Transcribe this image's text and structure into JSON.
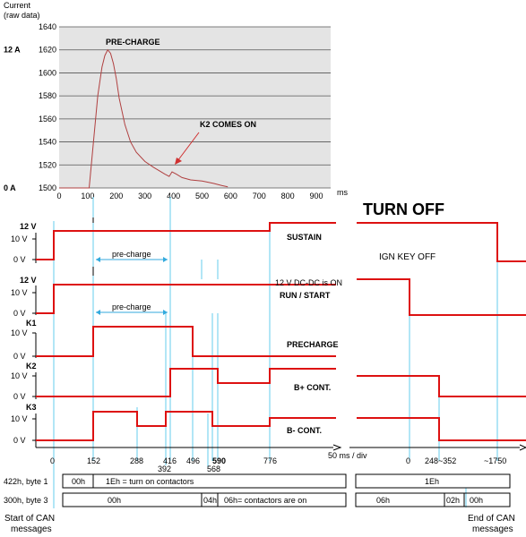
{
  "chart_data": {
    "type": "line",
    "ylabel": "Current (raw data)",
    "xlabel": "ms",
    "xlim": [
      0,
      950
    ],
    "ylim": [
      1500,
      1640
    ],
    "x_ticks": [
      "0",
      "100",
      "200",
      "300",
      "400",
      "500",
      "600",
      "700",
      "800",
      "900"
    ],
    "y_ticks": [
      "1500",
      "1520",
      "1540",
      "1560",
      "1580",
      "1600",
      "1620",
      "1640"
    ],
    "amp_labels": [
      {
        "label": "12 A",
        "at": 1620
      },
      {
        "label": "0 A",
        "at": 1500
      }
    ],
    "grid": true,
    "annotations": [
      {
        "text": "PRE-CHARGE",
        "x": 180,
        "y": 1622
      },
      {
        "text": "K2 COMES ON",
        "x": 390,
        "y": 1506
      }
    ],
    "series": [
      {
        "x": [
          0,
          105,
          120,
          135,
          150,
          160,
          170,
          180,
          190,
          200,
          210,
          230,
          250,
          270,
          300,
          330,
          350,
          370,
          385,
          395,
          410,
          430,
          460,
          500,
          540,
          570,
          590
        ],
        "y": [
          1500,
          1500,
          1540,
          1580,
          1605,
          1615,
          1620,
          1617,
          1608,
          1595,
          1578,
          1555,
          1540,
          1531,
          1523,
          1518,
          1515,
          1512,
          1510,
          1514,
          1512,
          1509,
          1507,
          1506,
          1504,
          1502,
          1501
        ]
      }
    ]
  },
  "timing": {
    "title": "TURN OFF",
    "label_12v": "12 V",
    "label_10v": "10 V",
    "label_0v": "0 V",
    "ch_sustain": "SUSTAIN",
    "ch_run_start": "RUN / START",
    "dc_dc_on": "12 V DC-DC is ON",
    "ch_precharge": "PRECHARGE",
    "ch_bplus": "B+ CONT.",
    "ch_bminus": "B- CONT.",
    "k1": "K1",
    "k2": "K2",
    "k3": "K3",
    "pre_charge": "pre-charge",
    "ign_key_off": "IGN KEY OFF",
    "scale": "50 ms / div",
    "x_labels": [
      "0",
      "152",
      "288",
      "416",
      "496",
      "590",
      "776"
    ],
    "x_labels_low": [
      "392",
      "568"
    ],
    "off_labels": [
      "0",
      "248~352",
      "~1750"
    ]
  },
  "can": {
    "row1_label": "422h, byte 1",
    "row1_a": "00h",
    "row1_b": "1Eh = turn on contactors",
    "row1_c": "1Eh",
    "row2_label": "300h, byte 3",
    "row2_a": "00h",
    "row2_b": "04h",
    "row2_c": "06h= contactors are on",
    "row2_d": "06h",
    "row2_e": "02h",
    "row2_f": "00h",
    "start_label_1": "Start of CAN",
    "start_label_2": "messages",
    "end_label_1": "End of CAN",
    "end_label_2": "messages"
  }
}
